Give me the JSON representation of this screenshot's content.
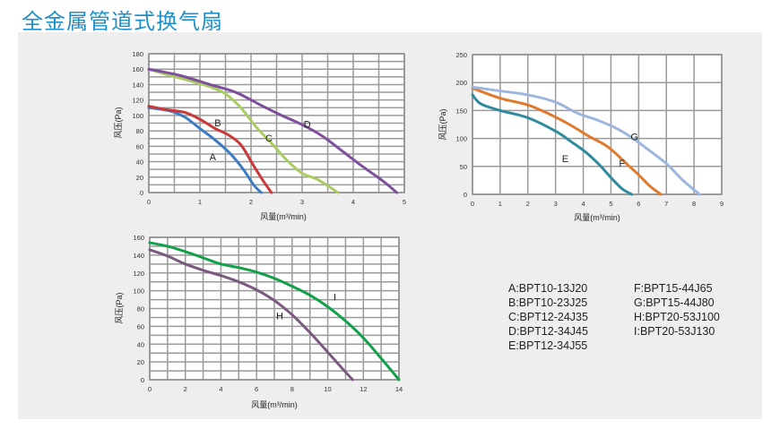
{
  "header": {
    "title": "全金属管道式换气扇"
  },
  "legend": {
    "items": [
      "A:BPT10-13J20",
      "F:BPT15-44J65",
      "B:BPT10-23J25",
      "G:BPT15-44J80",
      "C:BPT12-24J35",
      "H:BPT20-53J100",
      "D:BPT12-34J45",
      "I:BPT20-53J130",
      "E:BPT12-34J55"
    ]
  },
  "chart_data": [
    {
      "type": "line",
      "xlabel": "风量(m³/min)",
      "ylabel": "风压(Pa)",
      "xlim": [
        0,
        5
      ],
      "ylim": [
        0,
        180
      ],
      "xticks": [
        "0",
        "1",
        "2",
        "3",
        "4",
        "5"
      ],
      "yticks": [
        "0",
        "20",
        "40",
        "60",
        "80",
        "100",
        "120",
        "140",
        "160",
        "180"
      ],
      "grid": true,
      "series": [
        {
          "name": "A",
          "color": "#3d7cc4",
          "x": [
            0,
            0.4,
            0.7,
            1.0,
            1.3,
            1.6,
            1.85,
            2.05,
            2.2
          ],
          "y": [
            110,
            106,
            98,
            83,
            68,
            50,
            30,
            10,
            0
          ]
        },
        {
          "name": "B",
          "color": "#c9393a",
          "x": [
            0,
            0.3,
            0.7,
            1.0,
            1.3,
            1.55,
            1.8,
            2.05,
            2.25,
            2.4
          ],
          "y": [
            112,
            108,
            104,
            95,
            83,
            75,
            62,
            35,
            14,
            0
          ]
        },
        {
          "name": "C",
          "color": "#a8cc62",
          "x": [
            0,
            0.4,
            0.8,
            1.2,
            1.5,
            1.8,
            2.1,
            2.4,
            2.7,
            3.0,
            3.3,
            3.7
          ],
          "y": [
            160,
            152,
            145,
            137,
            128,
            110,
            85,
            64,
            42,
            25,
            17,
            0
          ]
        },
        {
          "name": "D",
          "color": "#7d4f9c",
          "x": [
            0,
            0.6,
            1.2,
            1.7,
            2.2,
            2.6,
            3.0,
            3.4,
            3.8,
            4.2,
            4.6,
            4.85
          ],
          "y": [
            160,
            152,
            140,
            130,
            113,
            100,
            88,
            73,
            53,
            33,
            14,
            0
          ]
        }
      ],
      "annotations": [
        "A",
        "B",
        "C",
        "D"
      ]
    },
    {
      "type": "line",
      "xlabel": "风量(m³/min)",
      "ylabel": "风压(Pa)",
      "xlim": [
        0,
        9
      ],
      "ylim": [
        0,
        250
      ],
      "xticks": [
        "0",
        "1",
        "2",
        "3",
        "4",
        "5",
        "6",
        "7",
        "8",
        "9"
      ],
      "yticks": [
        "0",
        "50",
        "100",
        "150",
        "200",
        "250"
      ],
      "grid": true,
      "series": [
        {
          "name": "E",
          "color": "#2e8a9c",
          "x": [
            0,
            0.3,
            1.0,
            2.0,
            3.0,
            3.6,
            4.1,
            4.6,
            5.0,
            5.4,
            5.75
          ],
          "y": [
            178,
            162,
            150,
            137,
            113,
            93,
            75,
            52,
            30,
            10,
            0
          ]
        },
        {
          "name": "F",
          "color": "#e07a2e",
          "x": [
            0,
            1.0,
            2.0,
            2.8,
            3.5,
            4.2,
            4.8,
            5.2,
            5.6,
            6.0,
            6.4,
            6.8
          ],
          "y": [
            190,
            172,
            160,
            143,
            125,
            104,
            88,
            72,
            53,
            35,
            15,
            0
          ]
        },
        {
          "name": "G",
          "color": "#9cb6de",
          "x": [
            0,
            1.0,
            2.0,
            3.0,
            3.8,
            4.5,
            5.2,
            5.8,
            6.4,
            7.0,
            7.6,
            8.2
          ],
          "y": [
            192,
            185,
            178,
            165,
            145,
            133,
            118,
            100,
            78,
            55,
            25,
            0
          ]
        }
      ],
      "annotations": [
        "E",
        "F",
        "G"
      ]
    },
    {
      "type": "line",
      "xlabel": "风量(m³/min)",
      "ylabel": "风压(Pa)",
      "xlim": [
        0,
        14
      ],
      "ylim": [
        0,
        160
      ],
      "xticks": [
        "0",
        "2",
        "4",
        "6",
        "8",
        "10",
        "12",
        "14"
      ],
      "yticks": [
        "0",
        "20",
        "40",
        "60",
        "80",
        "100",
        "120",
        "140",
        "160"
      ],
      "grid": true,
      "series": [
        {
          "name": "H",
          "color": "#7a5b7f",
          "x": [
            0,
            1.0,
            2.0,
            3.0,
            4.0,
            5.0,
            6.0,
            7.0,
            8.0,
            9.0,
            10.0,
            10.8,
            11.4
          ],
          "y": [
            146,
            139,
            130,
            123,
            117,
            110,
            101,
            89,
            73,
            53,
            31,
            13,
            0
          ]
        },
        {
          "name": "I",
          "color": "#13a04b",
          "x": [
            0,
            1.0,
            2.0,
            3.0,
            4.0,
            5.0,
            6.0,
            7.0,
            8.0,
            9.0,
            10.0,
            11.0,
            12.0,
            13.0,
            14.0
          ],
          "y": [
            154,
            150,
            144,
            137,
            130,
            126,
            121,
            114,
            105,
            95,
            82,
            66,
            47,
            24,
            0
          ]
        }
      ],
      "annotations": [
        "H",
        "I"
      ]
    }
  ]
}
